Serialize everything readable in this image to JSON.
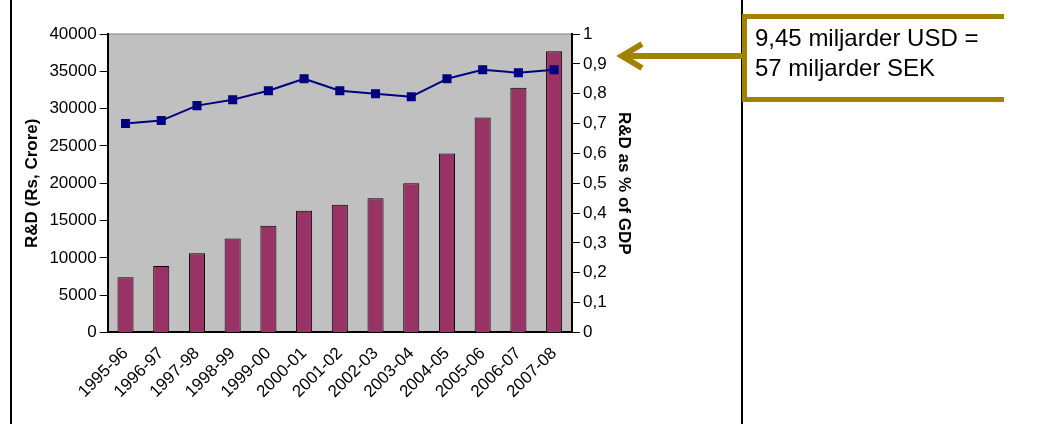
{
  "chart_data": {
    "type": "bar",
    "ylabel": "R&D (Rs, Crore)",
    "y2label": "R&D as % of GDP",
    "categories": [
      "1995-96",
      "1996-97",
      "1997-98",
      "1998-99",
      "1999-00",
      "2000-01",
      "2001-02",
      "2002-03",
      "2003-04",
      "2004-05",
      "2005-06",
      "2006-07",
      "2007-08"
    ],
    "series": [
      {
        "color": "#993366",
        "values": [
          7400,
          8900,
          10600,
          12600,
          14300,
          16300,
          17100,
          18000,
          20000,
          24000,
          28800,
          32800,
          37700
        ]
      },
      {
        "type": "line",
        "axis": "y2",
        "color": "#000080",
        "values": [
          0.7,
          0.71,
          0.76,
          0.78,
          0.81,
          0.85,
          0.81,
          0.8,
          0.79,
          0.85,
          0.88,
          0.87,
          0.88
        ]
      }
    ],
    "ylim": [
      0,
      40000
    ],
    "yticks": [
      0,
      5000,
      10000,
      15000,
      20000,
      25000,
      30000,
      35000,
      40000
    ],
    "y2lim": [
      0,
      1
    ],
    "y2ticks": [
      {
        "value": 0,
        "label": "0"
      },
      {
        "value": 0.1,
        "label": "0,1"
      },
      {
        "value": 0.2,
        "label": "0,2"
      },
      {
        "value": 0.3,
        "label": "0,3"
      },
      {
        "value": 0.4,
        "label": "0,4"
      },
      {
        "value": 0.5,
        "label": "0,5"
      },
      {
        "value": 0.6,
        "label": "0,6"
      },
      {
        "value": 0.7,
        "label": "0,7"
      },
      {
        "value": 0.8,
        "label": "0,8"
      },
      {
        "value": 0.9,
        "label": "0,9"
      },
      {
        "value": 1,
        "label": "1"
      }
    ],
    "marker": "square",
    "grid": false,
    "legend": false,
    "annotations": [
      "9,45 miljarder USD = 57 miljarder SEK"
    ]
  }
}
